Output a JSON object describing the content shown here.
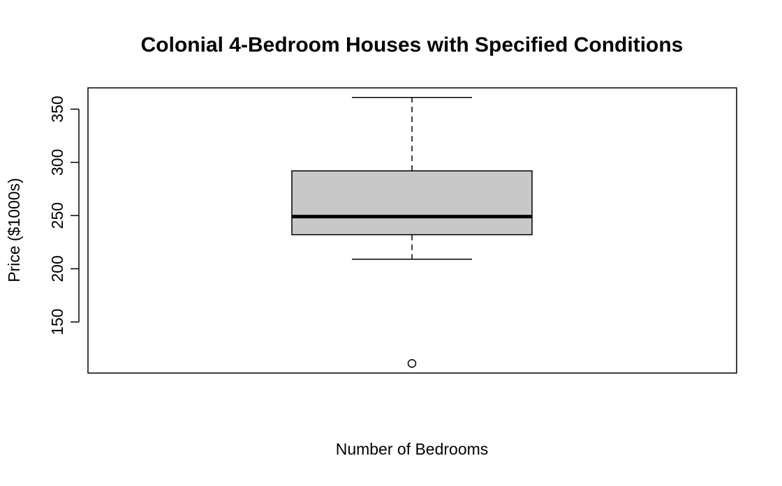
{
  "chart_data": {
    "type": "boxplot",
    "title": "Colonial 4-Bedroom Houses with Specified Conditions",
    "xlabel": "Number of Bedrooms",
    "ylabel": "Price ($1000s)",
    "ylim": [
      102,
      370
    ],
    "yticks": [
      150,
      200,
      250,
      300,
      350
    ],
    "grid": false,
    "box": {
      "whisker_low": 209,
      "q1": 232,
      "median": 249,
      "q3": 292,
      "whisker_high": 361,
      "outliers": [
        111
      ]
    },
    "colors": {
      "box_fill": "#c8c8c8",
      "stroke": "#000000"
    }
  }
}
